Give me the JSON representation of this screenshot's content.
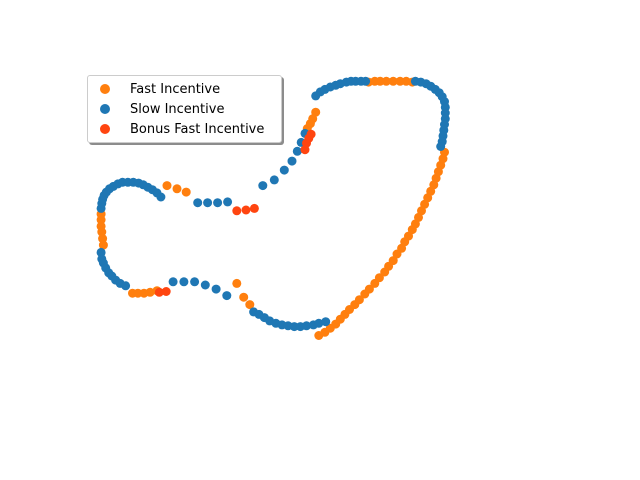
{
  "colors": {
    "fast": "#ff7f0e",
    "slow": "#1f77b4",
    "bonus": "#ff4510"
  },
  "chart_data": {
    "type": "scatter",
    "title": "",
    "xlabel": "",
    "ylabel": "",
    "axes_visible": false,
    "grid": false,
    "legend_position": "upper-left",
    "xlim": [
      0,
      600
    ],
    "ylim": [
      0,
      400
    ],
    "series": [
      {
        "name": "Fast Incentive",
        "color": "#ff7f0e",
        "points": [
          [
            4,
            233
          ],
          [
            4,
            226
          ],
          [
            4,
            218
          ],
          [
            5,
            211
          ],
          [
            6,
            203
          ],
          [
            7,
            195
          ],
          [
            45,
            136
          ],
          [
            52,
            136
          ],
          [
            60,
            136
          ],
          [
            68,
            137
          ],
          [
            77,
            139
          ],
          [
            90,
            268
          ],
          [
            103,
            264
          ],
          [
            115,
            260
          ],
          [
            181,
            148
          ],
          [
            190,
            131
          ],
          [
            198,
            122
          ],
          [
            273,
            338
          ],
          [
            277,
            344
          ],
          [
            280,
            350
          ],
          [
            284,
            358
          ],
          [
            288,
            84
          ],
          [
            296,
            88
          ],
          [
            303,
            93
          ],
          [
            310,
            98
          ],
          [
            316,
            104
          ],
          [
            322,
            110
          ],
          [
            328,
            116
          ],
          [
            335,
            122
          ],
          [
            341,
            128
          ],
          [
            348,
            135
          ],
          [
            354,
            141
          ],
          [
            361,
            148
          ],
          [
            367,
            155
          ],
          [
            374,
            162
          ],
          [
            379,
            169
          ],
          [
            385,
            176
          ],
          [
            390,
            184
          ],
          [
            396,
            191
          ],
          [
            400,
            199
          ],
          [
            405,
            206
          ],
          [
            410,
            214
          ],
          [
            414,
            221
          ],
          [
            418,
            229
          ],
          [
            422,
            237
          ],
          [
            426,
            245
          ],
          [
            430,
            253
          ],
          [
            434,
            261
          ],
          [
            438,
            269
          ],
          [
            441,
            277
          ],
          [
            444,
            285
          ],
          [
            447,
            293
          ],
          [
            450,
            301
          ],
          [
            452,
            309
          ],
          [
            353,
            395
          ],
          [
            361,
            396
          ],
          [
            368,
            396
          ],
          [
            376,
            396
          ],
          [
            385,
            396
          ],
          [
            394,
            396
          ],
          [
            402,
            396
          ],
          [
            410,
            395
          ]
        ]
      },
      {
        "name": "Slow Incentive",
        "color": "#1f77b4",
        "points": [
          [
            4,
            240
          ],
          [
            5,
            246
          ],
          [
            6,
            251
          ],
          [
            8,
            256
          ],
          [
            11,
            260
          ],
          [
            15,
            264
          ],
          [
            20,
            267
          ],
          [
            26,
            270
          ],
          [
            32,
            272
          ],
          [
            39,
            272
          ],
          [
            46,
            272
          ],
          [
            53,
            271
          ],
          [
            59,
            269
          ],
          [
            65,
            266
          ],
          [
            71,
            263
          ],
          [
            77,
            259
          ],
          [
            82,
            254
          ],
          [
            4,
            186
          ],
          [
            5,
            178
          ],
          [
            7,
            173
          ],
          [
            10,
            167
          ],
          [
            14,
            161
          ],
          [
            18,
            157
          ],
          [
            23,
            152
          ],
          [
            29,
            148
          ],
          [
            36,
            145
          ],
          [
            98,
            150
          ],
          [
            112,
            150
          ],
          [
            126,
            150
          ],
          [
            140,
            146
          ],
          [
            154,
            141
          ],
          [
            168,
            133
          ],
          [
            130,
            247
          ],
          [
            143,
            247
          ],
          [
            156,
            247
          ],
          [
            169,
            248
          ],
          [
            203,
            113
          ],
          [
            210,
            110
          ],
          [
            217,
            106
          ],
          [
            224,
            102
          ],
          [
            232,
            99
          ],
          [
            240,
            97
          ],
          [
            248,
            96
          ],
          [
            256,
            95
          ],
          [
            264,
            95
          ],
          [
            272,
            96
          ],
          [
            281,
            97
          ],
          [
            288,
            99
          ],
          [
            297,
            101
          ],
          [
            215,
            268
          ],
          [
            230,
            275
          ],
          [
            243,
            287
          ],
          [
            253,
            298
          ],
          [
            260,
            310
          ],
          [
            265,
            321
          ],
          [
            270,
            332
          ],
          [
            284,
            378
          ],
          [
            290,
            383
          ],
          [
            296,
            386
          ],
          [
            303,
            389
          ],
          [
            310,
            391
          ],
          [
            316,
            393
          ],
          [
            324,
            395
          ],
          [
            330,
            396
          ],
          [
            336,
            396
          ],
          [
            343,
            396
          ],
          [
            349,
            396
          ],
          [
            414,
            396
          ],
          [
            421,
            395
          ],
          [
            428,
            393
          ],
          [
            434,
            390
          ],
          [
            440,
            386
          ],
          [
            445,
            382
          ],
          [
            449,
            377
          ],
          [
            452,
            371
          ],
          [
            453,
            364
          ],
          [
            453,
            357
          ],
          [
            453,
            350
          ],
          [
            452,
            343
          ],
          [
            451,
            336
          ],
          [
            450,
            329
          ],
          [
            449,
            322
          ],
          [
            447,
            316
          ]
        ]
      },
      {
        "name": "Bonus Fast Incentive",
        "color": "#ff4510",
        "points": [
          [
            80,
            137
          ],
          [
            89,
            138
          ],
          [
            181,
            237
          ],
          [
            193,
            238
          ],
          [
            204,
            240
          ],
          [
            270,
            312
          ],
          [
            272,
            320
          ],
          [
            275,
            326
          ],
          [
            278,
            331
          ]
        ]
      }
    ]
  },
  "legend": {
    "items": [
      {
        "label": "Fast Incentive",
        "color": "#ff7f0e"
      },
      {
        "label": "Slow Incentive",
        "color": "#1f77b4"
      },
      {
        "label": "Bonus Fast Incentive",
        "color": "#ff4510"
      }
    ]
  }
}
